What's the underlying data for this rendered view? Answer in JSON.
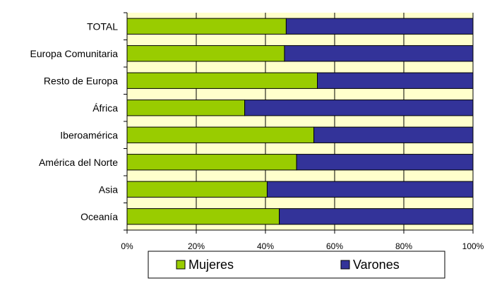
{
  "chart_data": {
    "type": "bar",
    "orientation": "horizontal",
    "stacked": "percent",
    "categories": [
      "TOTAL",
      "Europa Comunitaria",
      "Resto de Europa",
      "África",
      "Iberoamérica",
      "América del Norte",
      "Asia",
      "Oceanía"
    ],
    "series": [
      {
        "name": "Mujeres",
        "color": "#99cc00",
        "values": [
          46,
          45.5,
          55,
          34,
          54,
          49,
          40.5,
          44
        ]
      },
      {
        "name": "Varones",
        "color": "#333399",
        "values": [
          54,
          54.5,
          45,
          66,
          46,
          51,
          59.5,
          56
        ]
      }
    ],
    "xticks": [
      "0%",
      "20%",
      "40%",
      "60%",
      "80%",
      "100%"
    ],
    "xlim": [
      0,
      100
    ],
    "title": "",
    "xlabel": "",
    "ylabel": "",
    "grid": "vertical",
    "legend_position": "bottom",
    "plot_background": "#ffffcc"
  }
}
